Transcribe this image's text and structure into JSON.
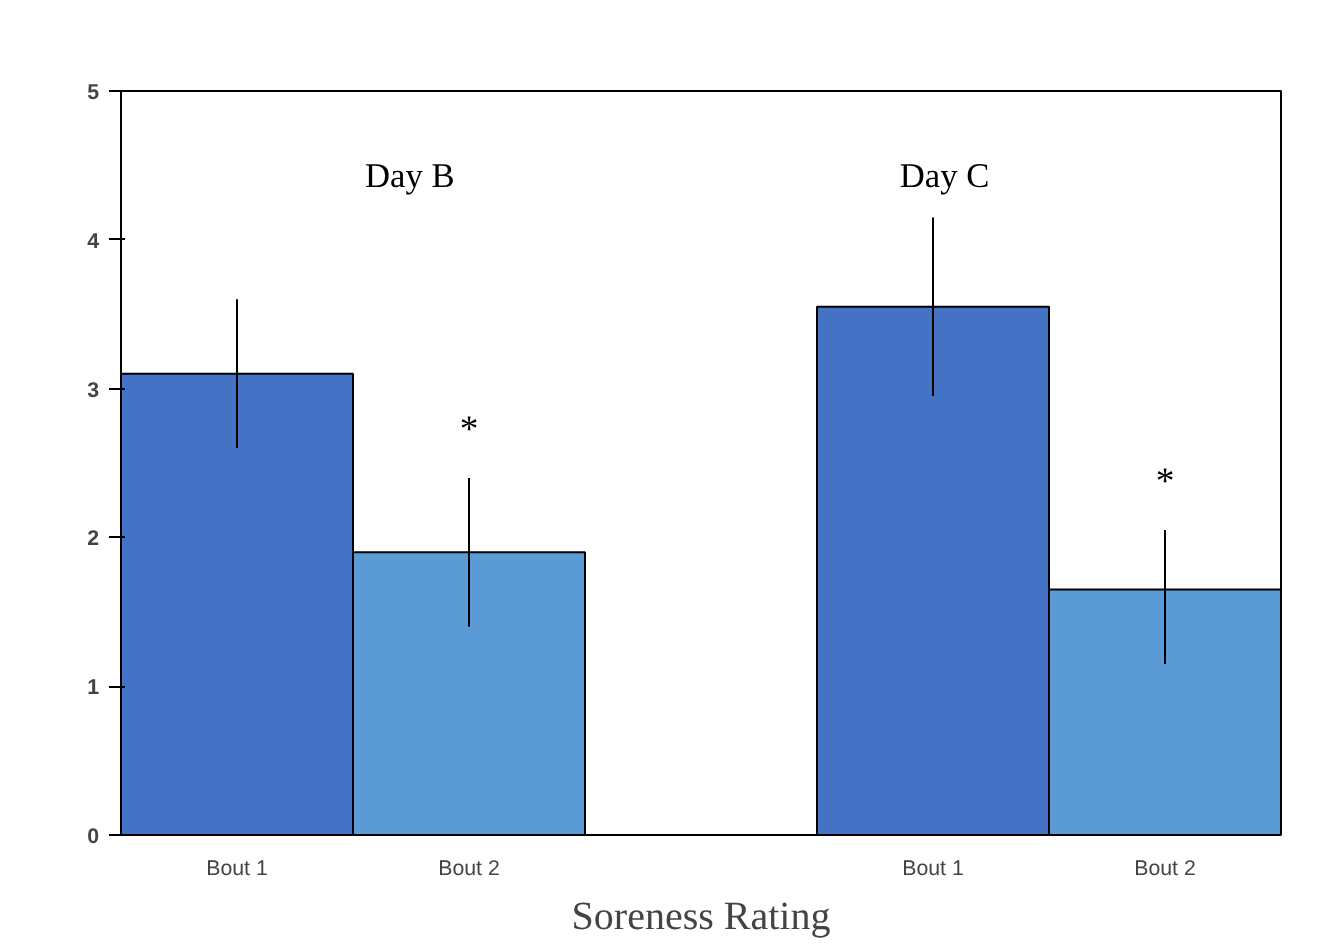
{
  "chart_data": {
    "type": "bar",
    "xlabel": "Soreness Rating",
    "categories": [
      "Bout 1",
      "Bout 2",
      null,
      "Bout 1",
      "Bout 2"
    ],
    "values": [
      3.1,
      1.9,
      null,
      3.55,
      1.65
    ],
    "colors": [
      "#4472c4",
      "#5b9bd5",
      null,
      "#4472c4",
      "#5b9bd5"
    ],
    "errors": [
      0.5,
      0.5,
      null,
      0.6,
      [
        1.15,
        2.05
      ]
    ],
    "ylim": [
      0,
      5
    ],
    "yticks": [
      0,
      1,
      2,
      3,
      4,
      5
    ],
    "grid": false,
    "annotations": [
      "Day B",
      "Day C",
      "*",
      "*"
    ]
  }
}
